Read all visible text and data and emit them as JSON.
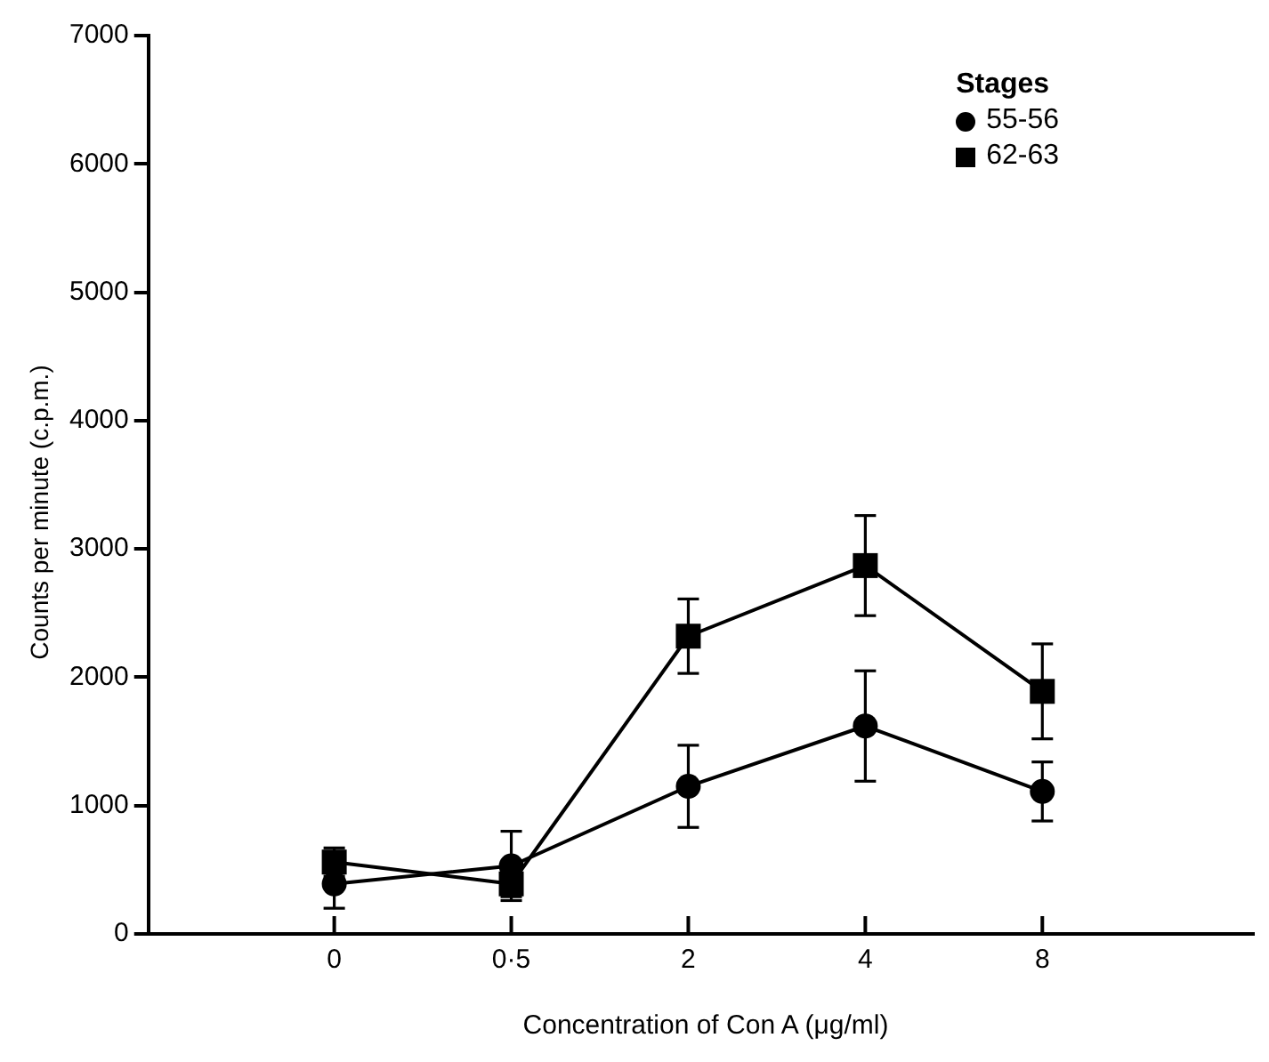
{
  "chart_data": {
    "type": "line",
    "xlabel": "Concentration of Con A (μg/ml)",
    "ylabel": "Counts per minute (c.p.m.)",
    "legend_title": "Stages",
    "legend": "top right",
    "grid": false,
    "categories": [
      "0",
      "0·5",
      "2",
      "4",
      "8"
    ],
    "ylim": [
      0,
      7000
    ],
    "yticks": [
      0,
      1000,
      2000,
      3000,
      4000,
      5000,
      6000,
      7000
    ],
    "series": [
      {
        "name": "55-56",
        "color": "#000000",
        "marker": "circle",
        "values": [
          390,
          530,
          1150,
          1620,
          1110
        ],
        "errors": [
          190,
          270,
          320,
          430,
          230
        ]
      },
      {
        "name": "62-63",
        "color": "#000000",
        "marker": "square",
        "values": [
          560,
          390,
          2320,
          2870,
          1890
        ],
        "errors": [
          110,
          100,
          290,
          390,
          370
        ]
      }
    ]
  }
}
